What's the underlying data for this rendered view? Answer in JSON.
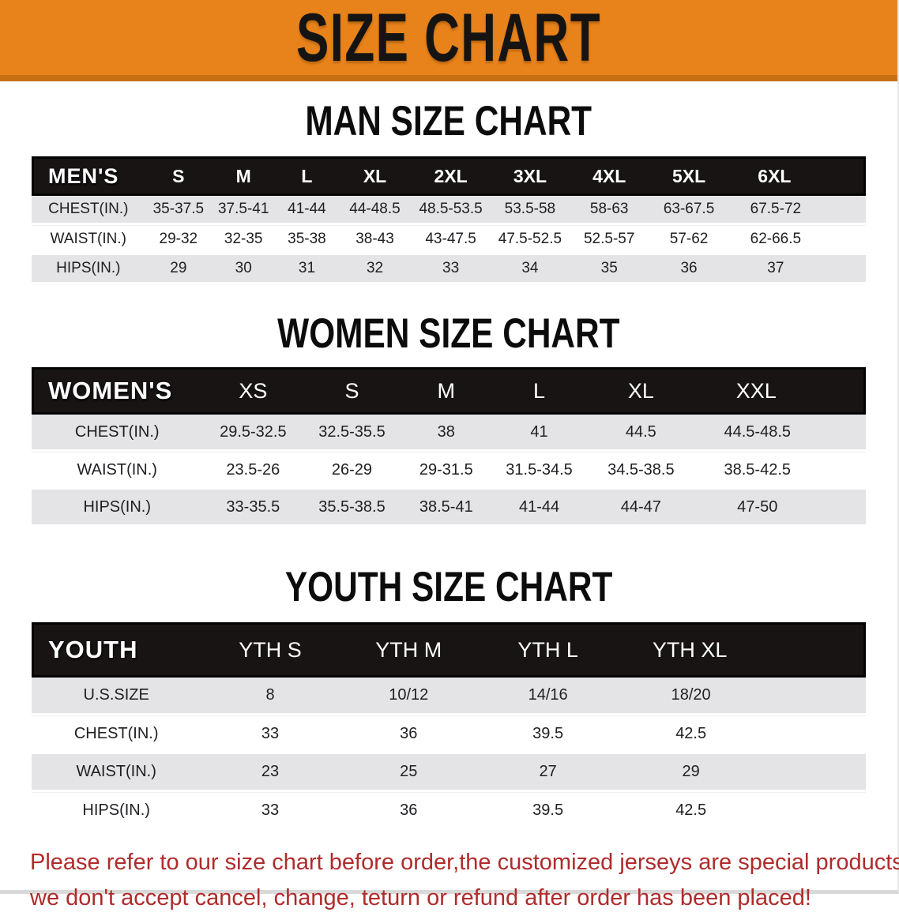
{
  "banner": {
    "title": "SIZE CHART"
  },
  "sections": [
    {
      "heading": "MAN SIZE CHART",
      "group_label": "MEN'S",
      "columns": [
        "S",
        "M",
        "L",
        "XL",
        "2XL",
        "3XL",
        "4XL",
        "5XL",
        "6XL"
      ],
      "rows": [
        {
          "label": "CHEST(IN.)",
          "values": [
            "35-37.5",
            "37.5-41",
            "41-44",
            "44-48.5",
            "48.5-53.5",
            "53.5-58",
            "58-63",
            "63-67.5",
            "67.5-72"
          ]
        },
        {
          "label": "WAIST(IN.)",
          "values": [
            "29-32",
            "32-35",
            "35-38",
            "38-43",
            "43-47.5",
            "47.5-52.5",
            "52.5-57",
            "57-62",
            "62-66.5"
          ]
        },
        {
          "label": "HIPS(IN.)",
          "values": [
            "29",
            "30",
            "31",
            "32",
            "33",
            "34",
            "35",
            "36",
            "37"
          ]
        }
      ]
    },
    {
      "heading": "WOMEN SIZE CHART",
      "group_label": "WOMEN'S",
      "columns": [
        "XS",
        "S",
        "M",
        "L",
        "XL",
        "XXL"
      ],
      "rows": [
        {
          "label": "CHEST(IN.)",
          "values": [
            "29.5-32.5",
            "32.5-35.5",
            "38",
            "41",
            "44.5",
            "44.5-48.5"
          ]
        },
        {
          "label": "WAIST(IN.)",
          "values": [
            "23.5-26",
            "26-29",
            "29-31.5",
            "31.5-34.5",
            "34.5-38.5",
            "38.5-42.5"
          ]
        },
        {
          "label": "HIPS(IN.)",
          "values": [
            "33-35.5",
            "35.5-38.5",
            "38.5-41",
            "41-44",
            "44-47",
            "47-50"
          ]
        }
      ]
    },
    {
      "heading": "YOUTH SIZE CHART",
      "group_label": "YOUTH",
      "columns": [
        "YTH S",
        "YTH M",
        "YTH L",
        "YTH XL"
      ],
      "rows": [
        {
          "label": "U.S.SIZE",
          "values": [
            "8",
            "10/12",
            "14/16",
            "18/20"
          ]
        },
        {
          "label": "CHEST(IN.)",
          "values": [
            "33",
            "36",
            "39.5",
            "42.5"
          ]
        },
        {
          "label": "WAIST(IN.)",
          "values": [
            "23",
            "25",
            "27",
            "29"
          ]
        },
        {
          "label": "HIPS(IN.)",
          "values": [
            "33",
            "36",
            "39.5",
            "42.5"
          ]
        }
      ]
    }
  ],
  "footer": {
    "line1": "Please refer to our size chart before order,the customized jerseys are special products,",
    "line2": "we don't accept cancel, change, teturn or refund after order has been placed!"
  },
  "colors": {
    "banner_orange": "#e8831b",
    "banner_edge": "#c76f12",
    "header_black": "#181414",
    "row_gray": "#e4e4e6",
    "footer_red": "#b02b2b"
  }
}
